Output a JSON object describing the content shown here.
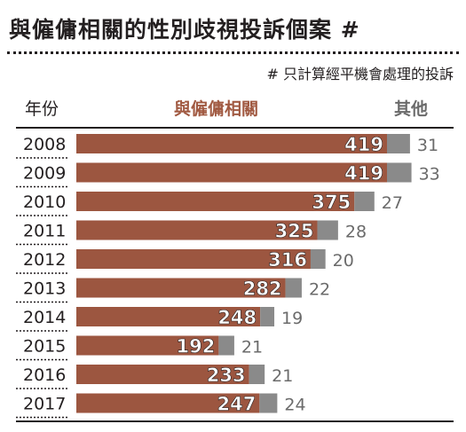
{
  "title": "與僱傭相關的性別歧視投訴個案 #",
  "footnote": "# 只計算經平機會處理的投訴",
  "headers": {
    "year": "年份",
    "employment": "與僱傭相關",
    "other": "其他"
  },
  "colors": {
    "employment": "#9c5640",
    "other": "#8a8a8a",
    "employment_header": "#a15a42",
    "other_label": "#6b6b6b"
  },
  "chart_data": {
    "type": "bar",
    "orientation": "horizontal",
    "stacked": true,
    "categories": [
      "2008",
      "2009",
      "2010",
      "2011",
      "2012",
      "2013",
      "2014",
      "2015",
      "2016",
      "2017"
    ],
    "series": [
      {
        "name": "與僱傭相關",
        "values": [
          419,
          419,
          375,
          325,
          316,
          282,
          248,
          192,
          233,
          247
        ]
      },
      {
        "name": "其他",
        "values": [
          31,
          33,
          27,
          28,
          20,
          22,
          19,
          21,
          21,
          24
        ]
      }
    ],
    "title": "與僱傭相關的性別歧視投訴個案 #",
    "xlabel": "",
    "ylabel": "年份",
    "xlim": [
      0,
      450
    ],
    "grid": false,
    "legend": "top"
  }
}
